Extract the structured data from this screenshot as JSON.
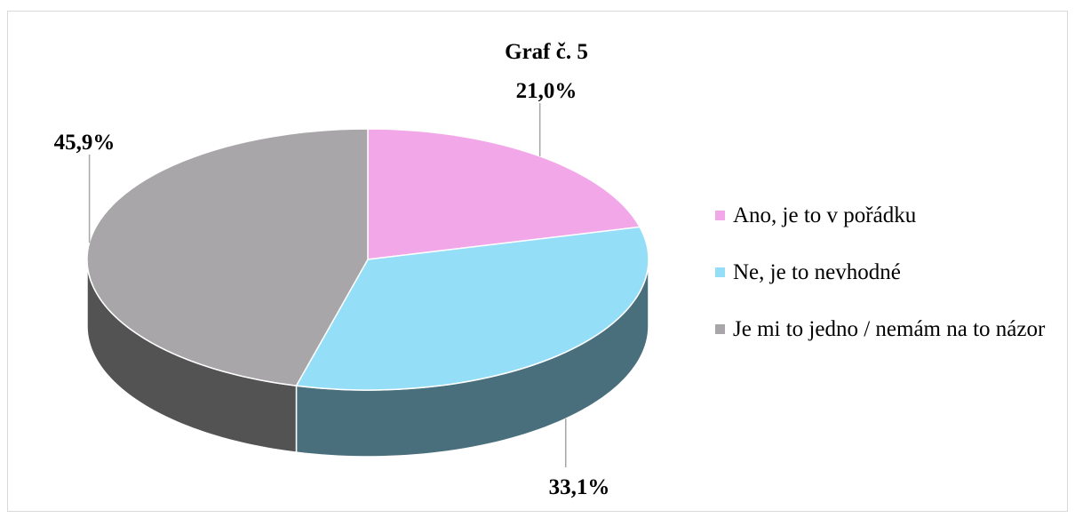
{
  "chart_data": {
    "type": "pie",
    "title": "Graf č. 5",
    "categories": [
      "Ano, je to v pořádku",
      "Ne, je to nevhodné",
      "Je mi to jedno / nemám na to názor"
    ],
    "values": [
      21.0,
      33.1,
      45.9
    ],
    "value_labels": [
      "21,0%",
      "33,1%",
      "45,9%"
    ],
    "colors": [
      "#f2a8e8",
      "#94def8",
      "#a8a6a8"
    ],
    "legend": "right"
  }
}
